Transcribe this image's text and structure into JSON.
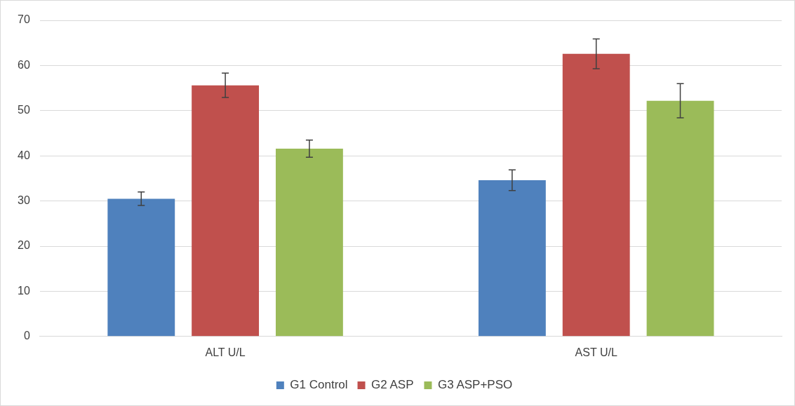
{
  "chart_data": {
    "type": "bar",
    "categories": [
      "ALT U/L",
      "AST U/L"
    ],
    "series": [
      {
        "name": "G1 Control",
        "color": "#4f81bd",
        "values": [
          30.5,
          34.6
        ],
        "errors": [
          1.5,
          2.3
        ]
      },
      {
        "name": "G2 ASP",
        "color": "#c0504d",
        "values": [
          55.6,
          62.6
        ],
        "errors": [
          2.7,
          3.3
        ]
      },
      {
        "name": "G3 ASP+PSO",
        "color": "#9bbb59",
        "values": [
          41.6,
          52.2
        ],
        "errors": [
          1.9,
          3.8
        ]
      }
    ],
    "ylim": [
      0,
      70
    ],
    "yticks": [
      0,
      10,
      20,
      30,
      40,
      50,
      60,
      70
    ],
    "grid": "y",
    "legend": "bottom"
  }
}
